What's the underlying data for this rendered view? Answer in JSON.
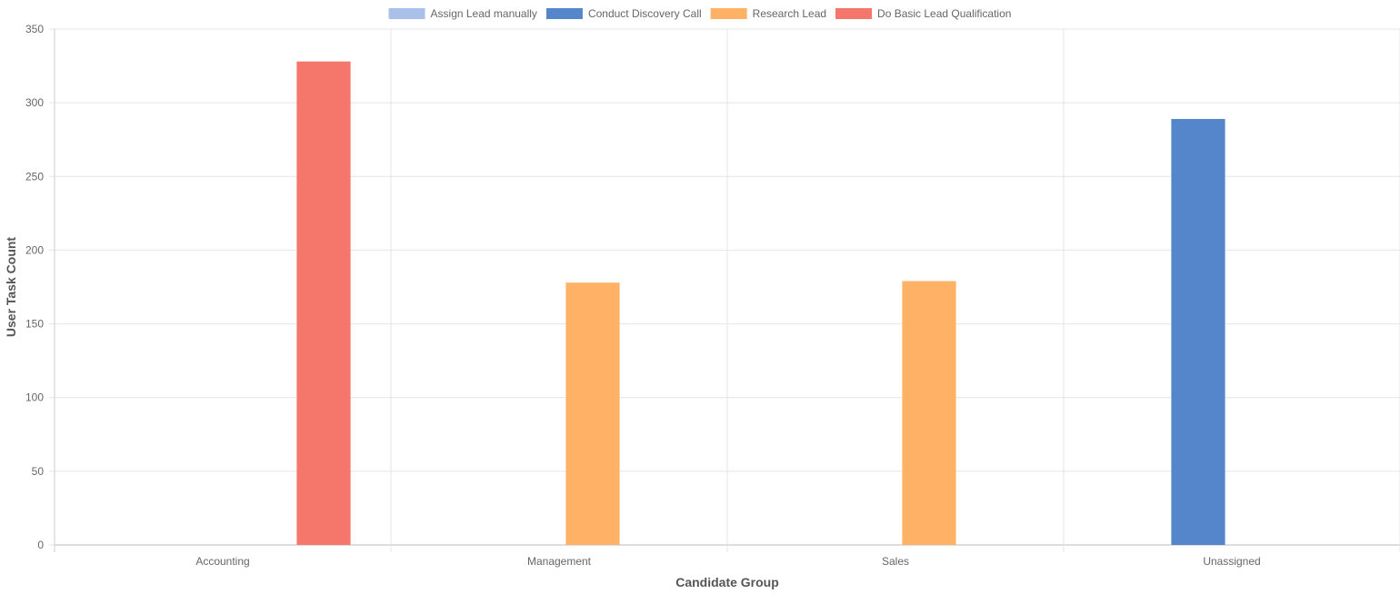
{
  "chart_data": {
    "type": "bar",
    "title": "",
    "xlabel": "Candidate Group",
    "ylabel": "User Task Count",
    "categories": [
      "Accounting",
      "Management",
      "Sales",
      "Unassigned"
    ],
    "ylim": [
      0,
      350
    ],
    "yticks": [
      0,
      50,
      100,
      150,
      200,
      250,
      300,
      350
    ],
    "grid": true,
    "legend_position": "top-center",
    "series": [
      {
        "name": "Assign Lead manually",
        "color": "#a9c1e8",
        "values": [
          0,
          0,
          0,
          0
        ]
      },
      {
        "name": "Conduct Discovery Call",
        "color": "#5586cc",
        "values": [
          0,
          0,
          0,
          289
        ]
      },
      {
        "name": "Research Lead",
        "color": "#ffb266",
        "values": [
          0,
          178,
          179,
          0
        ]
      },
      {
        "name": "Do Basic Lead Qualification",
        "color": "#f5766a",
        "values": [
          328,
          0,
          0,
          0
        ]
      }
    ]
  }
}
